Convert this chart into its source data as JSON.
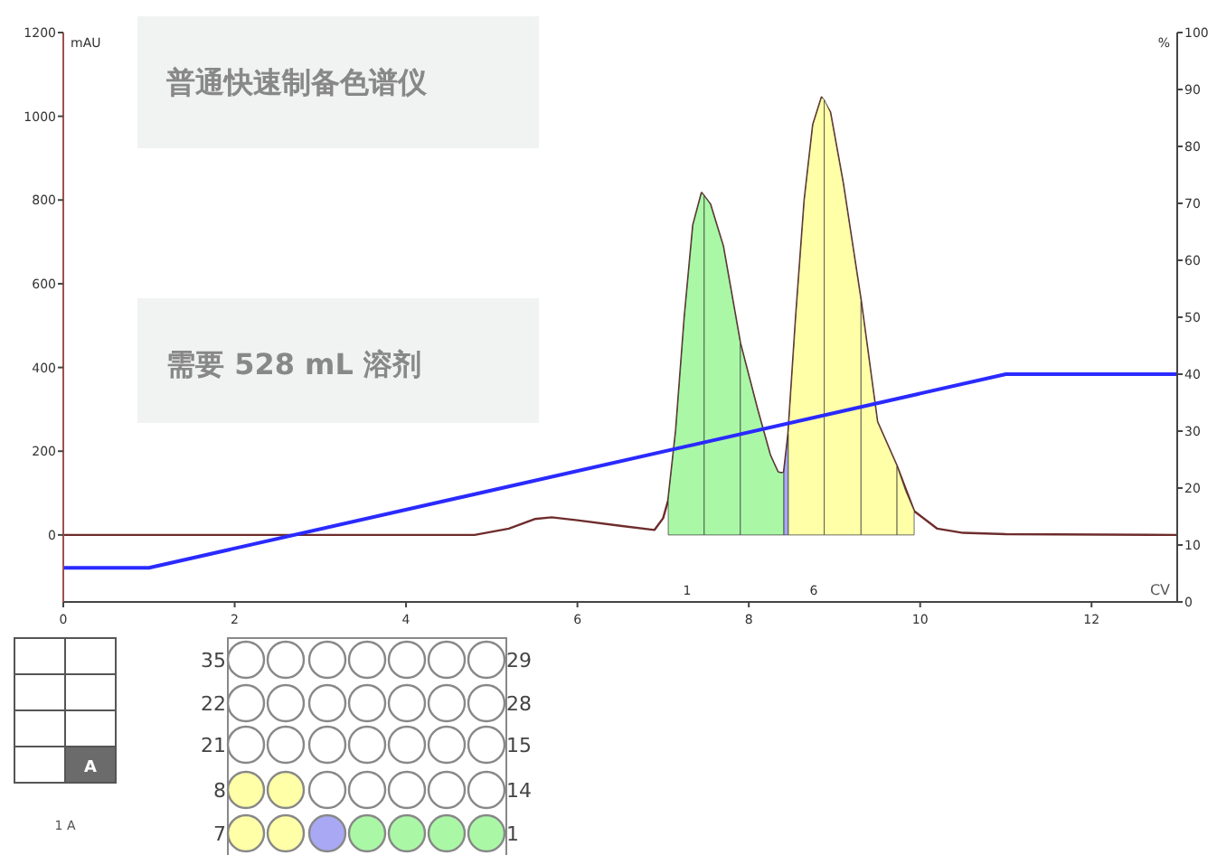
{
  "chart_data": {
    "type": "line",
    "xlabel": "CV",
    "ylabel": "mAU",
    "y2label": "%",
    "xlim": [
      0,
      13
    ],
    "xticks": [
      0,
      2,
      4,
      6,
      8,
      10,
      12
    ],
    "ylim": [
      -160,
      1200
    ],
    "yticks": [
      0,
      200,
      400,
      600,
      800,
      1000,
      1200
    ],
    "y2lim": [
      0,
      100
    ],
    "y2ticks": [
      0,
      10,
      20,
      30,
      40,
      50,
      60,
      70,
      80,
      90,
      100
    ],
    "grid": false,
    "series": [
      {
        "type": "area",
        "color": "#aaf8a6",
        "x": [
          7.06,
          7.15,
          7.25,
          7.35,
          7.45,
          7.48
        ],
        "values": [
          83,
          250,
          520,
          740,
          817,
          810
        ]
      },
      {
        "type": "area",
        "color": "#aaf8a6",
        "x": [
          7.48,
          7.55,
          7.7,
          7.9
        ],
        "values": [
          810,
          790,
          690,
          458
        ]
      },
      {
        "type": "area",
        "color": "#aaf8a6",
        "x": [
          7.9,
          8.1,
          8.25,
          8.34,
          8.38,
          8.41
        ],
        "values": [
          458,
          300,
          190,
          150,
          148,
          150
        ]
      },
      {
        "type": "area",
        "color": "#a8a8f4",
        "x": [
          8.41,
          8.46
        ],
        "values": [
          150,
          240
        ]
      },
      {
        "type": "area",
        "color": "#ffffa8",
        "x": [
          8.46,
          8.55,
          8.65,
          8.75,
          8.85,
          8.88
        ],
        "values": [
          240,
          520,
          800,
          980,
          1045,
          1040
        ]
      },
      {
        "type": "area",
        "color": "#ffffa8",
        "x": [
          8.88,
          8.95,
          9.1,
          9.31
        ],
        "values": [
          1040,
          1010,
          840,
          558
        ]
      },
      {
        "type": "area",
        "color": "#ffffa8",
        "x": [
          9.31,
          9.5,
          9.73
        ],
        "values": [
          558,
          270,
          164
        ]
      },
      {
        "type": "area",
        "color": "#ffffa8",
        "x": [
          9.73,
          9.83,
          9.93
        ],
        "values": [
          164,
          105,
          57
        ]
      },
      {
        "color": "#6e2c2c",
        "x": [
          0,
          4.8,
          5.2,
          5.5,
          5.7,
          6.0,
          6.5,
          6.9,
          7.0,
          7.06,
          7.15,
          7.25,
          7.35,
          7.45,
          7.55,
          7.7,
          7.9,
          8.1,
          8.25,
          8.34,
          8.38,
          8.41,
          8.46,
          8.55,
          8.65,
          8.75,
          8.85,
          8.95,
          9.1,
          9.31,
          9.5,
          9.73,
          9.93,
          10.2,
          10.5,
          11,
          13
        ],
        "values": [
          0,
          0,
          15,
          38,
          42,
          35,
          22,
          12,
          40,
          83,
          250,
          520,
          740,
          817,
          790,
          690,
          458,
          300,
          190,
          150,
          148,
          150,
          240,
          520,
          800,
          980,
          1045,
          1010,
          840,
          558,
          270,
          164,
          57,
          15,
          5,
          2,
          0
        ]
      },
      {
        "color": "#2a2aff",
        "axis": "y2",
        "x": [
          0,
          1,
          11,
          13
        ],
        "values": [
          6,
          6,
          40,
          40
        ]
      }
    ],
    "annotations": [
      "普通快速制备色谱仪",
      "需要 528 mL 溶剂",
      "1",
      "6",
      "35",
      "22",
      "21",
      "8",
      "7",
      "29",
      "28",
      "15",
      "14",
      "1",
      "A",
      "1 A"
    ]
  }
}
